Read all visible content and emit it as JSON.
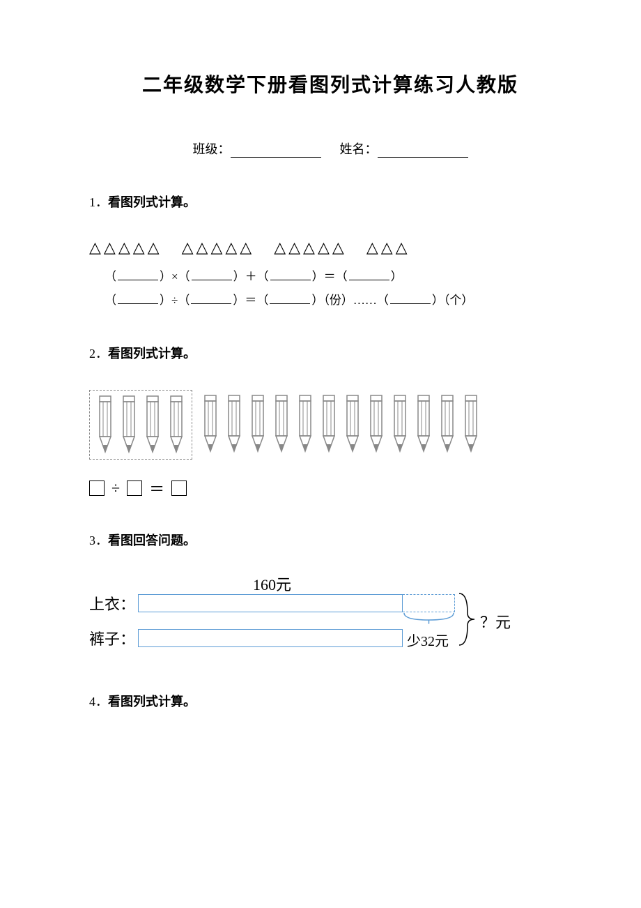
{
  "title": "二年级数学下册看图列式计算练习人教版",
  "header": {
    "class_label": "班级：",
    "name_label": "姓名："
  },
  "q1": {
    "num": "1．",
    "title": "看图列式计算。",
    "triangle": "△",
    "groups": [
      5,
      5,
      5,
      3
    ],
    "eq1_parts": [
      "（",
      "）×（",
      "）＋（",
      "）＝（",
      "）"
    ],
    "eq2_parts": [
      "（",
      "）÷（",
      "）＝（",
      "）（份）……（",
      "）（个）"
    ]
  },
  "q2": {
    "num": "2．",
    "title": "看图列式计算。",
    "grouped": 4,
    "rest": 12,
    "eq_op1": "÷",
    "eq_op2": "＝",
    "pencil_color": "#888888"
  },
  "q3": {
    "num": "3．",
    "title": "看图回答问题。",
    "top_value": "160元",
    "row1_label": "上衣：",
    "row2_label": "裤子：",
    "diff_label": "少32元",
    "question_label": "？元",
    "bar_color": "#5b9bd5",
    "bar1_width": 380,
    "bar2_width": 380,
    "diff_width": 75
  },
  "q4": {
    "num": "4．",
    "title": "看图列式计算。"
  }
}
